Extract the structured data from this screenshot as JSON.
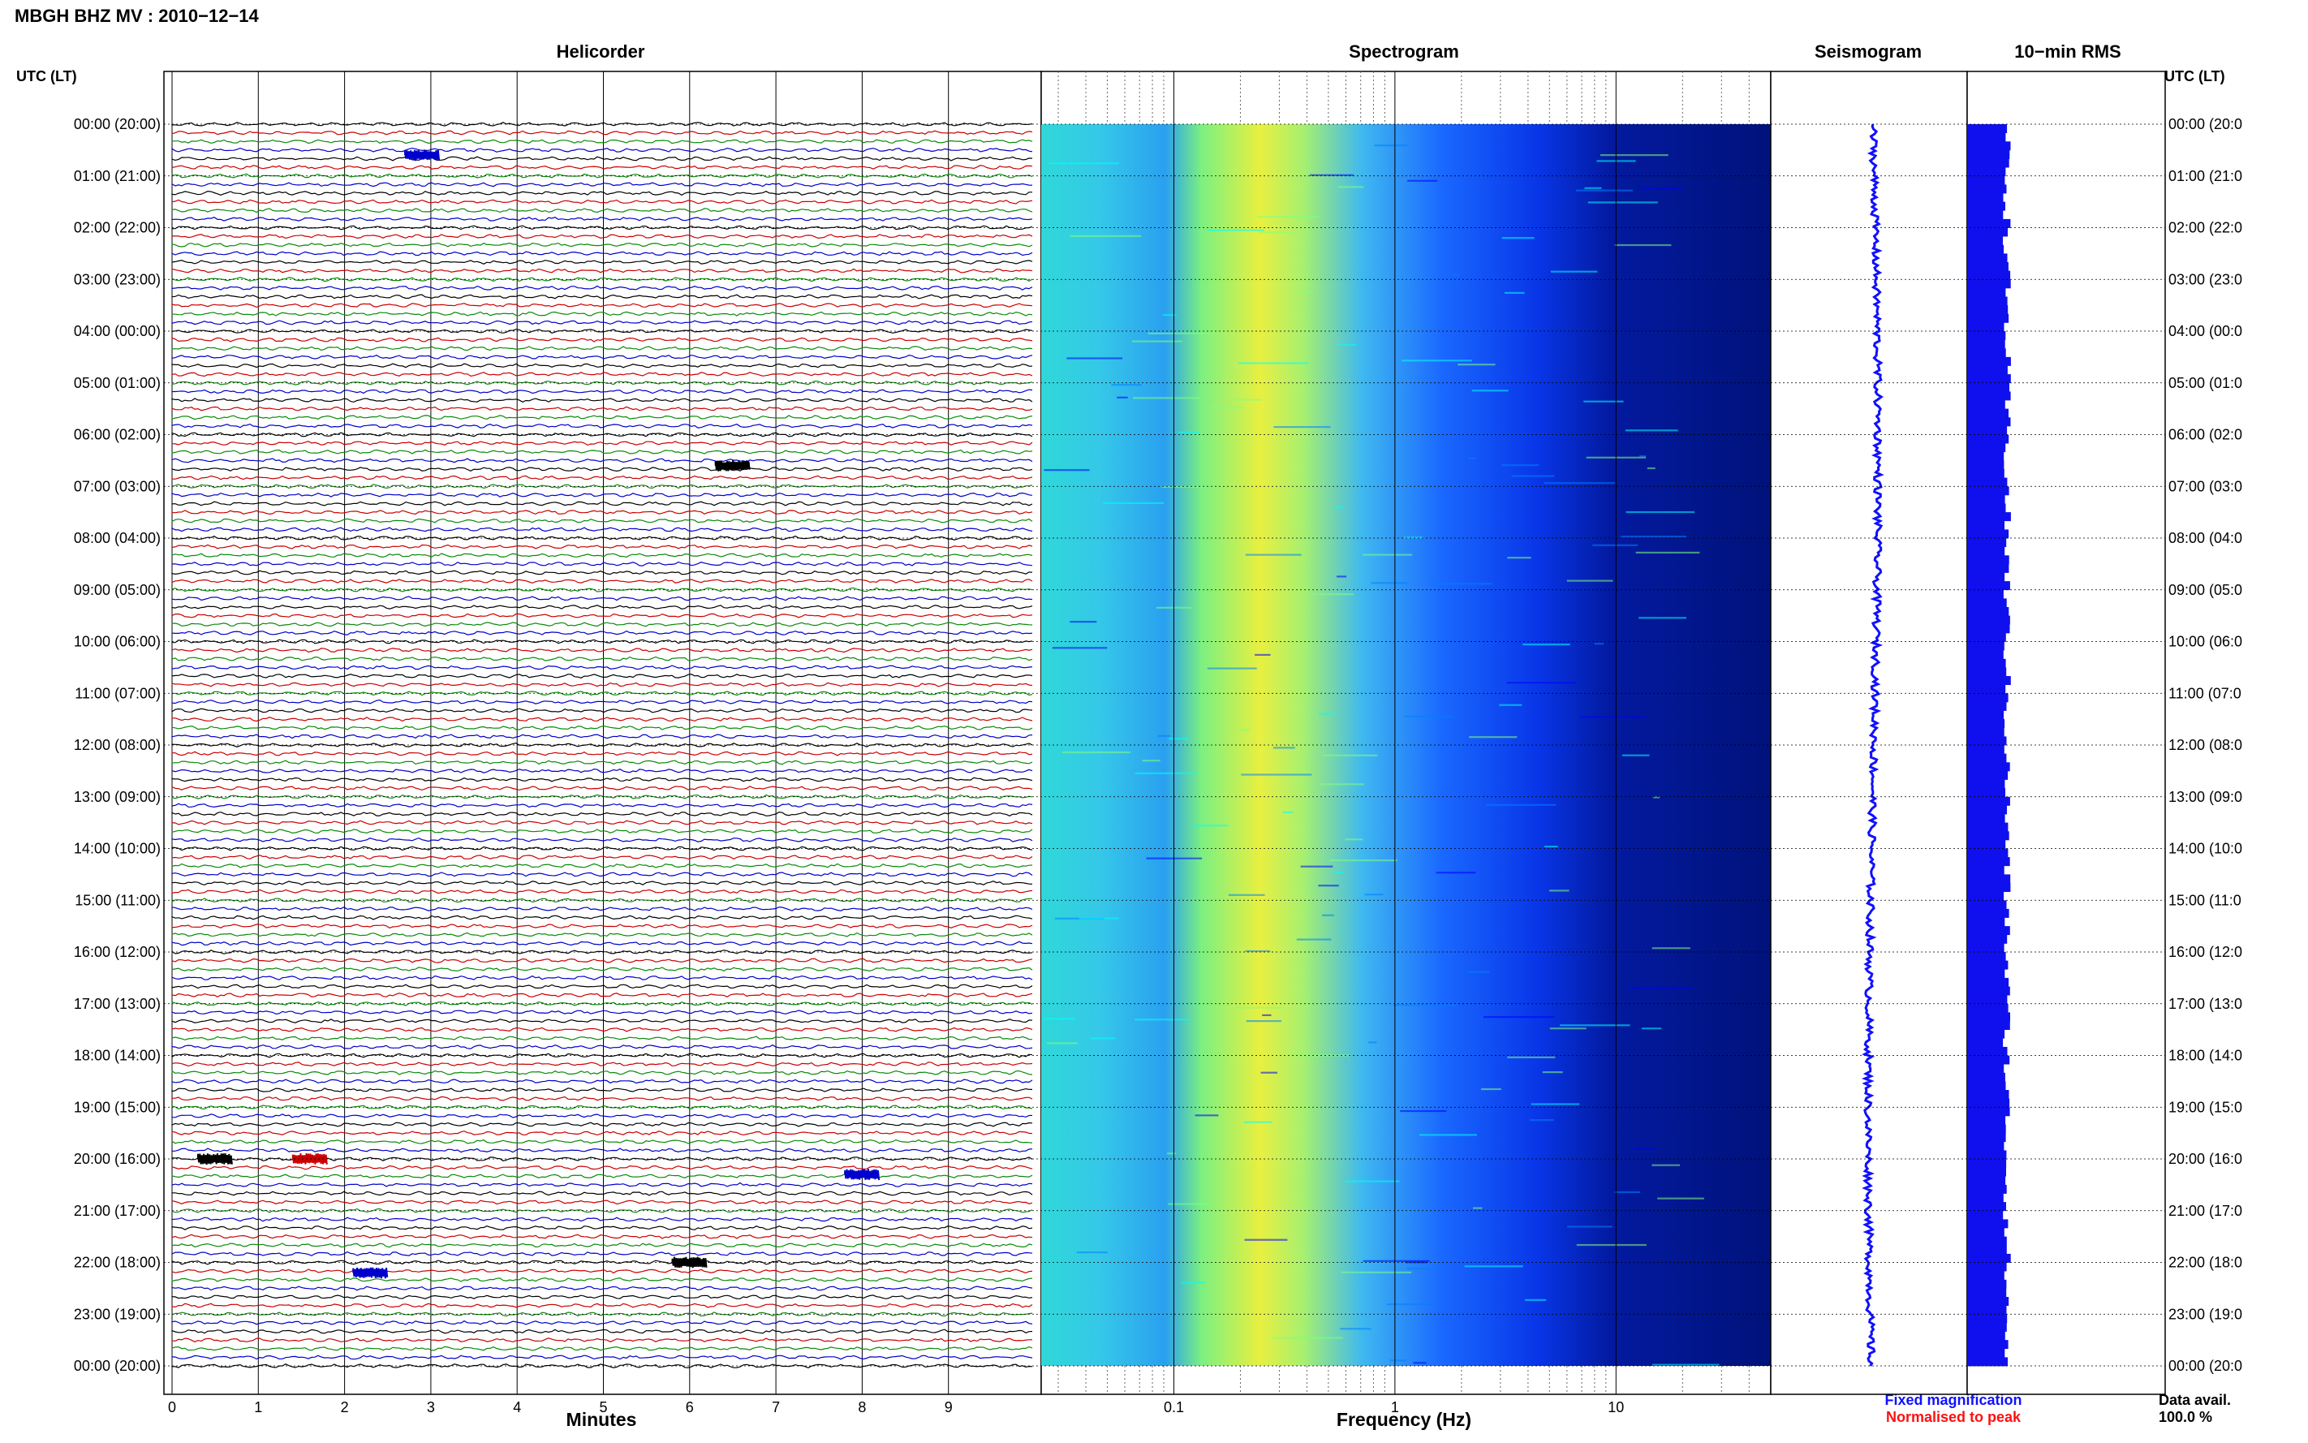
{
  "header": {
    "title": "MBGH BHZ MV : 2010−12−14"
  },
  "panels": {
    "helicorder": "Helicorder",
    "spectrogram": "Spectrogram",
    "seismogram": "Seismogram",
    "rms": "10−min RMS"
  },
  "axis": {
    "time_header_left": "UTC (LT)",
    "time_header_right": "UTC (LT)",
    "minutes_label": "Minutes",
    "frequency_label": "Frequency (Hz)"
  },
  "legend": {
    "fixed": "Fixed magnification",
    "normalised": "Normalised to peak",
    "fixed_color": "#1010ff",
    "normalised_color": "#ff1010"
  },
  "data_avail": {
    "label": "Data avail.",
    "value": "100.0 %"
  },
  "chart_data": {
    "type": "heatmap",
    "title": "MBGH BHZ MV : 2010−12−14",
    "hour_labels_left": [
      "00:00 (20:00)",
      "01:00 (21:00)",
      "02:00 (22:00)",
      "03:00 (23:00)",
      "04:00 (00:00)",
      "05:00 (01:00)",
      "06:00 (02:00)",
      "07:00 (03:00)",
      "08:00 (04:00)",
      "09:00 (05:00)",
      "10:00 (06:00)",
      "11:00 (07:00)",
      "12:00 (08:00)",
      "13:00 (09:00)",
      "14:00 (10:00)",
      "15:00 (11:00)",
      "16:00 (12:00)",
      "17:00 (13:00)",
      "18:00 (14:00)",
      "19:00 (15:00)",
      "20:00 (16:00)",
      "21:00 (17:00)",
      "22:00 (18:00)",
      "23:00 (19:00)",
      "00:00 (20:00)"
    ],
    "hour_labels_right": [
      "00:00 (20:0",
      "01:00 (21:0",
      "02:00 (22:0",
      "03:00 (23:0",
      "04:00 (00:0",
      "05:00 (01:0",
      "06:00 (02:0",
      "07:00 (03:0",
      "08:00 (04:0",
      "09:00 (05:0",
      "10:00 (06:0",
      "11:00 (07:0",
      "12:00 (08:0",
      "13:00 (09:0",
      "14:00 (10:0",
      "15:00 (11:0",
      "16:00 (12:0",
      "17:00 (13:0",
      "18:00 (14:0",
      "19:00 (15:0",
      "20:00 (16:0",
      "21:00 (17:0",
      "22:00 (18:0",
      "23:00 (19:0",
      "00:00 (20:0"
    ],
    "minute_ticks": [
      0,
      1,
      2,
      3,
      4,
      5,
      6,
      7,
      8,
      9
    ],
    "frequency_ticks": [
      "0.1",
      "1",
      "10"
    ],
    "freq_range_log10": [
      -1.6,
      1.7
    ],
    "trace_colors": [
      "#000000",
      "#cc0000",
      "#0a8a0a",
      "#0000cc"
    ],
    "traces_per_hour": 6,
    "events": [
      {
        "hour": 0.6,
        "minute": 2.7,
        "color": "#0000cc"
      },
      {
        "hour": 6.6,
        "minute": 6.3,
        "color": "#000000"
      },
      {
        "hour": 20.0,
        "minute": 0.3,
        "color": "#000000"
      },
      {
        "hour": 20.0,
        "minute": 1.4,
        "color": "#cc0000"
      },
      {
        "hour": 20.3,
        "minute": 7.8,
        "color": "#0000cc"
      },
      {
        "hour": 22.0,
        "minute": 5.8,
        "color": "#000000"
      },
      {
        "hour": 22.2,
        "minute": 2.1,
        "color": "#0000cc"
      }
    ],
    "spectrogram_colormap": [
      "#00007f",
      "#0000ff",
      "#0080ff",
      "#00ffff",
      "#80ff80",
      "#ffff00"
    ],
    "rms_series_color": "#1010ee",
    "seismogram_color": "#1010ff"
  }
}
